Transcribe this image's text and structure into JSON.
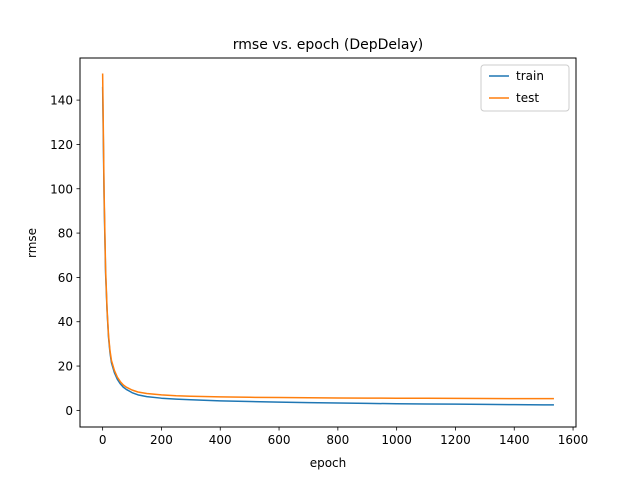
{
  "chart_data": {
    "type": "line",
    "title": "rmse vs. epoch (DepDelay)",
    "xlabel": "epoch",
    "ylabel": "rmse",
    "xlim": [
      -77,
      1610
    ],
    "ylim": [
      -7.5,
      159
    ],
    "xticks": [
      0,
      200,
      400,
      600,
      800,
      1000,
      1200,
      1400,
      1600
    ],
    "yticks": [
      0,
      20,
      40,
      60,
      80,
      100,
      120,
      140
    ],
    "grid": false,
    "legend_position": "top-right",
    "series": [
      {
        "name": "train",
        "color": "#1f77b4",
        "x": [
          0,
          5,
          10,
          15,
          20,
          25,
          30,
          40,
          50,
          60,
          70,
          80,
          100,
          120,
          150,
          200,
          250,
          300,
          400,
          500,
          600,
          700,
          800,
          900,
          1000,
          1100,
          1200,
          1300,
          1400,
          1500,
          1535
        ],
        "y": [
          146,
          95,
          62,
          45,
          33,
          26,
          21.5,
          17,
          14,
          12,
          10.5,
          9.5,
          8,
          7,
          6.2,
          5.5,
          5.1,
          4.8,
          4.3,
          4.0,
          3.7,
          3.5,
          3.3,
          3.15,
          3.0,
          2.9,
          2.8,
          2.7,
          2.6,
          2.5,
          2.5
        ]
      },
      {
        "name": "test",
        "color": "#ff7f0e",
        "x": [
          0,
          5,
          10,
          15,
          20,
          25,
          30,
          40,
          50,
          60,
          70,
          80,
          100,
          120,
          150,
          200,
          250,
          300,
          400,
          500,
          600,
          700,
          800,
          900,
          1000,
          1100,
          1200,
          1300,
          1400,
          1500,
          1535
        ],
        "y": [
          152,
          98,
          64,
          46,
          34,
          27,
          22.5,
          18,
          15,
          13,
          11.5,
          10.5,
          9.2,
          8.3,
          7.6,
          7.0,
          6.6,
          6.4,
          6.1,
          5.9,
          5.8,
          5.7,
          5.6,
          5.55,
          5.5,
          5.45,
          5.4,
          5.35,
          5.3,
          5.3,
          5.3
        ]
      }
    ]
  }
}
